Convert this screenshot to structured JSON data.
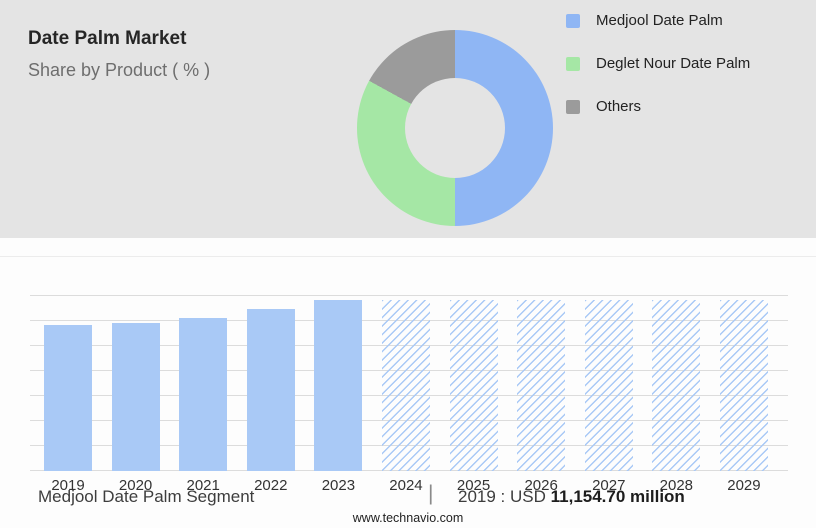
{
  "header": {
    "title": "Date Palm Market",
    "subtitle": "Share by Product ( % )"
  },
  "legend": [
    {
      "label": "Medjool Date Palm",
      "color": "#8fb6f4"
    },
    {
      "label": "Deglet Nour Date Palm",
      "color": "#a5e7a5"
    },
    {
      "label": "Others",
      "color": "#9b9b9b"
    }
  ],
  "footer": {
    "segment_label": "Medjool Date Palm Segment",
    "divider": "|",
    "year_prefix": "2019 : USD",
    "value": "11,154.70 million",
    "website": "www.technavio.com"
  },
  "chart_data": [
    {
      "type": "pie",
      "title": "Date Palm Market — Share by Product ( % )",
      "labels": [
        "Medjool Date Palm",
        "Deglet Nour Date Palm",
        "Others"
      ],
      "values": [
        50,
        33,
        17
      ],
      "colors": [
        "#8fb6f4",
        "#a5e7a5",
        "#9b9b9b"
      ],
      "donut": true,
      "legend_position": "right",
      "note": "No numeric labels shown; slice percentages estimated from arc angles"
    },
    {
      "type": "bar",
      "title": "Medjool Date Palm Segment market size, 2019-2029",
      "categories": [
        "2019",
        "2020",
        "2021",
        "2022",
        "2023",
        "2024",
        "2025",
        "2026",
        "2027",
        "2028",
        "2029"
      ],
      "values": [
        83,
        84,
        87,
        92,
        97,
        97,
        97,
        97,
        97,
        97,
        97
      ],
      "forecast_start_index": 5,
      "bar_color": "#a9c9f6",
      "forecast_style": "diagonal-hatch",
      "xlabel": "",
      "ylabel": "",
      "ylim": [
        0,
        100
      ],
      "grid": true,
      "note": "No y-axis labels shown; values are relative bar heights in % of plot area. 2019 value given in footer as USD 11,154.70 million"
    }
  ]
}
